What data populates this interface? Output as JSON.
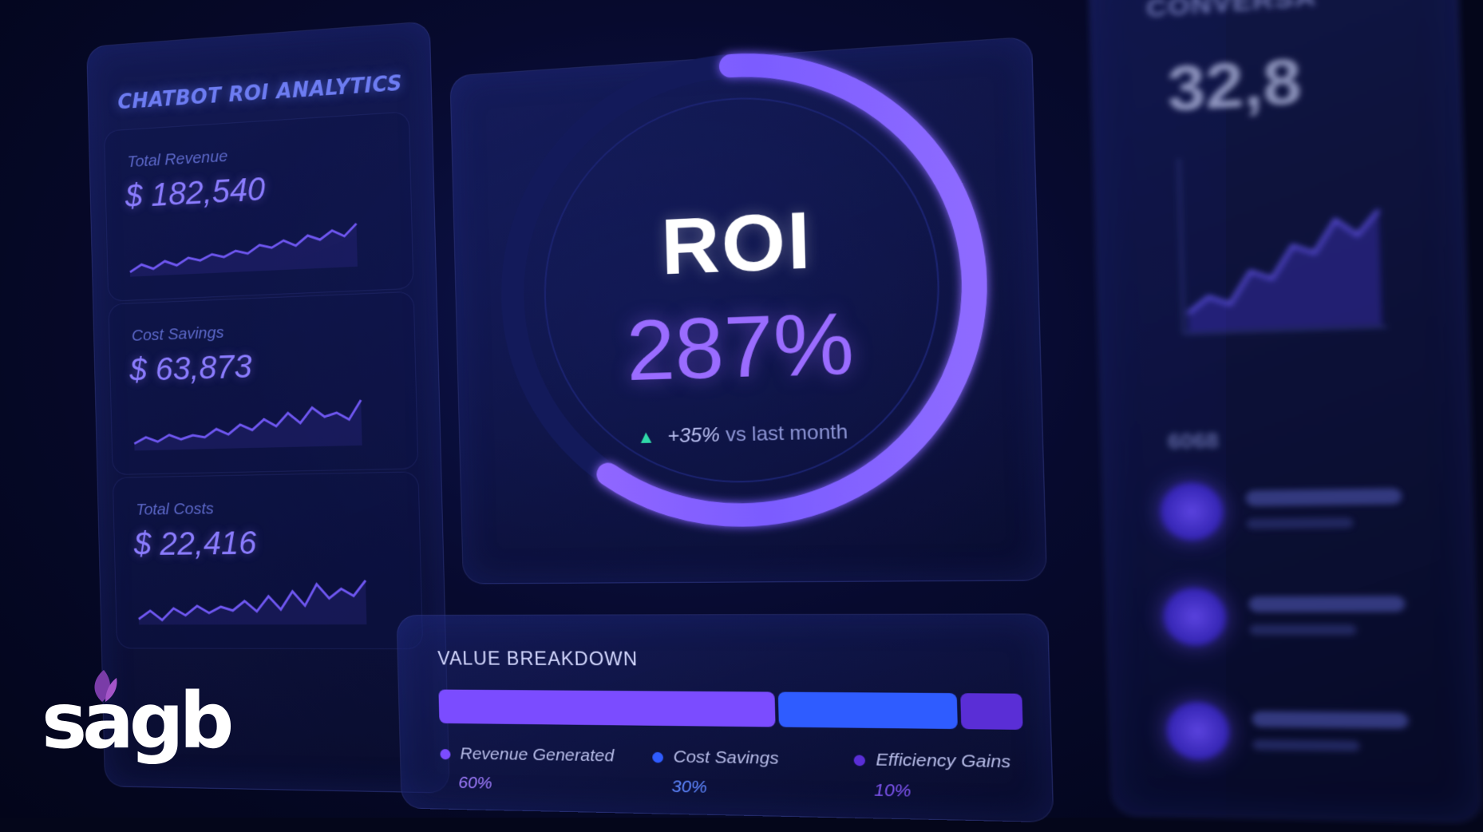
{
  "left": {
    "title": "CHATBOT ROI ANALYTICS",
    "metrics": [
      {
        "label": "Total Revenue",
        "value": "$ 182,540",
        "trend": [
          0.1,
          0.25,
          0.15,
          0.3,
          0.2,
          0.35,
          0.28,
          0.4,
          0.33,
          0.45,
          0.38,
          0.55,
          0.48,
          0.62,
          0.5,
          0.7,
          0.6,
          0.78,
          0.65,
          0.9
        ]
      },
      {
        "label": "Cost Savings",
        "value": "$ 63,873",
        "trend": [
          0.15,
          0.28,
          0.18,
          0.32,
          0.22,
          0.3,
          0.25,
          0.42,
          0.3,
          0.5,
          0.38,
          0.6,
          0.45,
          0.72,
          0.5,
          0.82,
          0.62,
          0.7,
          0.55,
          0.95
        ]
      },
      {
        "label": "Total Costs",
        "value": "$ 22,416",
        "trend": [
          0.12,
          0.3,
          0.1,
          0.35,
          0.2,
          0.4,
          0.25,
          0.38,
          0.3,
          0.5,
          0.28,
          0.6,
          0.32,
          0.7,
          0.4,
          0.85,
          0.55,
          0.75,
          0.6,
          0.92
        ]
      }
    ]
  },
  "roi": {
    "label": "ROI",
    "value": "287%",
    "trend_delta": "+35%",
    "trend_text": "vs last month",
    "progress": 0.6,
    "accent": "#8b5cf6"
  },
  "breakdown": {
    "title": "VALUE BREAKDOWN",
    "segments": [
      {
        "name": "Revenue Generated",
        "pct": "60%",
        "share": 60,
        "color": "#7b4cff"
      },
      {
        "name": "Cost Savings",
        "pct": "30%",
        "share": 30,
        "color": "#2f5cff"
      },
      {
        "name": "Efficiency Gains",
        "pct": "10%",
        "share": 10,
        "color": "#5a2ed6"
      }
    ]
  },
  "right": {
    "title": "CONVERSA",
    "value": "32,8",
    "subtitle": "6068",
    "chart": [
      0.1,
      0.2,
      0.15,
      0.35,
      0.3,
      0.5,
      0.45,
      0.65,
      0.55,
      0.7
    ]
  },
  "brand": {
    "logo": "sagb"
  }
}
